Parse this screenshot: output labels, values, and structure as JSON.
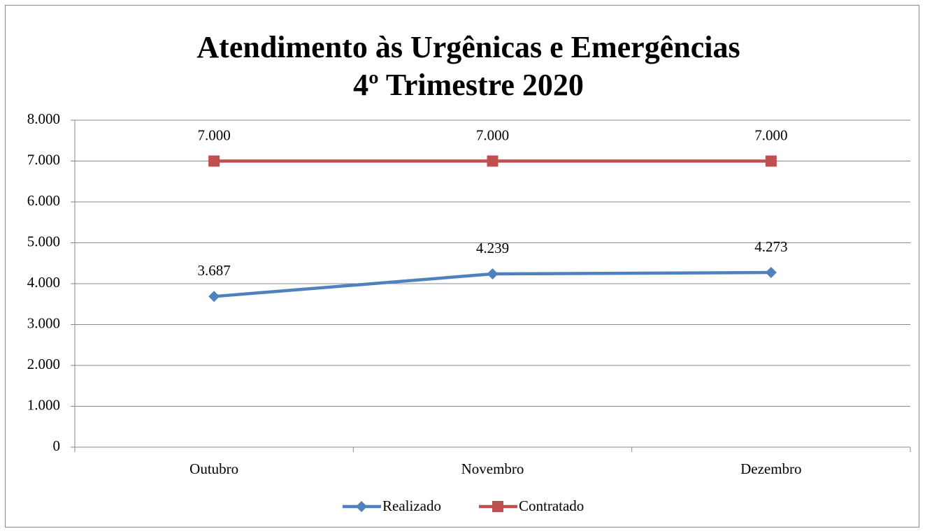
{
  "chart_data": {
    "type": "line",
    "title": [
      "Atendimento às Urgênicas e Emergências",
      "4º Trimestre 2020"
    ],
    "categories": [
      "Outubro",
      "Novembro",
      "Dezembro"
    ],
    "series": [
      {
        "name": "Realizado",
        "color": "#4f81bd",
        "marker": "diamond",
        "values": [
          3687,
          4239,
          4273
        ],
        "value_labels": [
          "3.687",
          "4.239",
          "4.273"
        ]
      },
      {
        "name": "Contratado",
        "color": "#c0504d",
        "marker": "square",
        "values": [
          7000,
          7000,
          7000
        ],
        "value_labels": [
          "7.000",
          "7.000",
          "7.000"
        ]
      }
    ],
    "ylim": [
      0,
      8000
    ],
    "yticks": [
      0,
      {
        "value": 1000,
        "label": "1.000"
      },
      {
        "value": 2000,
        "label": "2.000"
      },
      {
        "value": 3000,
        "label": "3.000"
      },
      {
        "value": 4000,
        "label": "4.000"
      },
      {
        "value": 5000,
        "label": "5.000"
      },
      {
        "value": 6000,
        "label": "6.000"
      },
      {
        "value": 7000,
        "label": "7.000"
      },
      {
        "value": 8000,
        "label": "8.000"
      }
    ],
    "grid": true,
    "legend": "bottom"
  }
}
